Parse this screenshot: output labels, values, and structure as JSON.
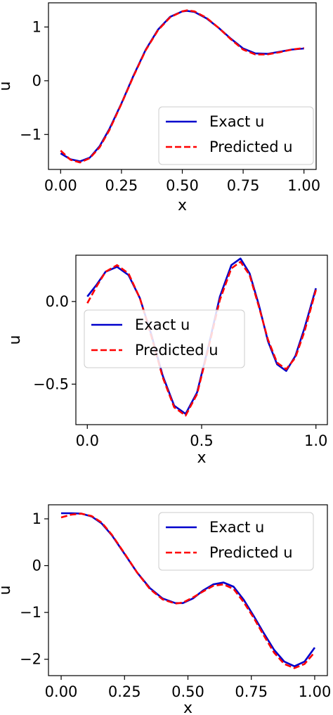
{
  "chart_data": [
    {
      "type": "line",
      "xlabel": "x",
      "ylabel": "u",
      "xlim": [
        -0.05,
        1.05
      ],
      "ylim": [
        -1.65,
        1.45
      ],
      "xticks": [
        0.0,
        0.25,
        0.5,
        0.75,
        1.0
      ],
      "xtick_labels": [
        "0.00",
        "0.25",
        "0.50",
        "0.75",
        "1.00"
      ],
      "yticks": [
        -1,
        0,
        1
      ],
      "ytick_labels": [
        "−1",
        "0",
        "1"
      ],
      "legend_position": "lower-right",
      "grid": false,
      "series": [
        {
          "name": "Exact u",
          "color": "#0000cc",
          "style": "solid",
          "x": [
            0.0,
            0.04,
            0.08,
            0.12,
            0.16,
            0.2,
            0.25,
            0.3,
            0.35,
            0.4,
            0.45,
            0.5,
            0.52,
            0.55,
            0.6,
            0.65,
            0.7,
            0.75,
            0.8,
            0.85,
            0.9,
            0.95,
            1.0
          ],
          "y": [
            -1.35,
            -1.46,
            -1.5,
            -1.43,
            -1.22,
            -0.9,
            -0.42,
            0.1,
            0.58,
            0.95,
            1.19,
            1.29,
            1.3,
            1.28,
            1.16,
            0.98,
            0.78,
            0.6,
            0.51,
            0.5,
            0.54,
            0.58,
            0.6
          ]
        },
        {
          "name": "Predicted u",
          "color": "#ff0000",
          "style": "dashed",
          "x": [
            0.0,
            0.04,
            0.08,
            0.12,
            0.16,
            0.2,
            0.25,
            0.3,
            0.35,
            0.4,
            0.45,
            0.5,
            0.52,
            0.55,
            0.6,
            0.65,
            0.7,
            0.75,
            0.8,
            0.85,
            0.9,
            0.95,
            1.0
          ],
          "y": [
            -1.3,
            -1.47,
            -1.52,
            -1.44,
            -1.24,
            -0.92,
            -0.43,
            0.09,
            0.57,
            0.94,
            1.18,
            1.29,
            1.31,
            1.29,
            1.17,
            0.98,
            0.77,
            0.58,
            0.49,
            0.49,
            0.53,
            0.58,
            0.61
          ]
        }
      ]
    },
    {
      "type": "line",
      "xlabel": "x",
      "ylabel": "u",
      "xlim": [
        -0.05,
        1.05
      ],
      "ylim": [
        -0.745,
        0.28
      ],
      "xticks": [
        0.0,
        0.5,
        1.0
      ],
      "xtick_labels": [
        "0.0",
        "0.5",
        "1.0"
      ],
      "yticks": [
        -0.5,
        0.0
      ],
      "ytick_labels": [
        "−0.5",
        "0.0"
      ],
      "legend_position": "center-left",
      "grid": false,
      "series": [
        {
          "name": "Exact u",
          "color": "#0000cc",
          "style": "solid",
          "x": [
            0.0,
            0.04,
            0.08,
            0.13,
            0.18,
            0.23,
            0.28,
            0.33,
            0.38,
            0.43,
            0.48,
            0.53,
            0.58,
            0.63,
            0.67,
            0.71,
            0.75,
            0.79,
            0.83,
            0.87,
            0.91,
            0.95,
            1.0
          ],
          "y": [
            0.03,
            0.1,
            0.18,
            0.21,
            0.16,
            0.02,
            -0.2,
            -0.45,
            -0.63,
            -0.68,
            -0.55,
            -0.27,
            0.03,
            0.22,
            0.26,
            0.17,
            -0.02,
            -0.24,
            -0.38,
            -0.42,
            -0.33,
            -0.16,
            0.08
          ]
        },
        {
          "name": "Predicted u",
          "color": "#ff0000",
          "style": "dashed",
          "x": [
            0.0,
            0.04,
            0.08,
            0.13,
            0.18,
            0.23,
            0.28,
            0.33,
            0.38,
            0.43,
            0.48,
            0.53,
            0.58,
            0.63,
            0.67,
            0.71,
            0.75,
            0.79,
            0.83,
            0.87,
            0.91,
            0.95,
            1.0
          ],
          "y": [
            -0.01,
            0.09,
            0.18,
            0.22,
            0.17,
            0.02,
            -0.21,
            -0.46,
            -0.64,
            -0.69,
            -0.56,
            -0.28,
            0.01,
            0.2,
            0.24,
            0.16,
            -0.03,
            -0.23,
            -0.37,
            -0.41,
            -0.34,
            -0.18,
            0.07
          ]
        }
      ]
    },
    {
      "type": "line",
      "xlabel": "x",
      "ylabel": "u",
      "xlim": [
        -0.05,
        1.05
      ],
      "ylim": [
        -2.35,
        1.3
      ],
      "xticks": [
        0.0,
        0.25,
        0.5,
        0.75,
        1.0
      ],
      "xtick_labels": [
        "0.00",
        "0.25",
        "0.50",
        "0.75",
        "1.00"
      ],
      "yticks": [
        -2,
        -1,
        0,
        1
      ],
      "ytick_labels": [
        "−2",
        "−1",
        "0",
        "1"
      ],
      "legend_position": "upper-right",
      "grid": false,
      "series": [
        {
          "name": "Exact u",
          "color": "#0000cc",
          "style": "solid",
          "x": [
            0.0,
            0.04,
            0.08,
            0.12,
            0.16,
            0.2,
            0.25,
            0.3,
            0.35,
            0.4,
            0.45,
            0.48,
            0.52,
            0.56,
            0.6,
            0.64,
            0.68,
            0.72,
            0.76,
            0.8,
            0.84,
            0.88,
            0.92,
            0.96,
            1.0
          ],
          "y": [
            1.12,
            1.12,
            1.11,
            1.05,
            0.9,
            0.65,
            0.25,
            -0.15,
            -0.48,
            -0.7,
            -0.8,
            -0.8,
            -0.7,
            -0.53,
            -0.4,
            -0.36,
            -0.45,
            -0.73,
            -1.08,
            -1.45,
            -1.8,
            -2.05,
            -2.15,
            -2.05,
            -1.75
          ]
        },
        {
          "name": "Predicted u",
          "color": "#ff0000",
          "style": "dashed",
          "x": [
            0.0,
            0.04,
            0.08,
            0.12,
            0.16,
            0.2,
            0.25,
            0.3,
            0.35,
            0.4,
            0.45,
            0.48,
            0.52,
            0.56,
            0.6,
            0.64,
            0.68,
            0.72,
            0.76,
            0.8,
            0.84,
            0.88,
            0.92,
            0.96,
            1.0
          ],
          "y": [
            1.03,
            1.09,
            1.11,
            1.06,
            0.92,
            0.66,
            0.26,
            -0.15,
            -0.5,
            -0.72,
            -0.81,
            -0.79,
            -0.68,
            -0.55,
            -0.43,
            -0.4,
            -0.5,
            -0.78,
            -1.12,
            -1.5,
            -1.86,
            -2.1,
            -2.19,
            -2.1,
            -1.85
          ]
        }
      ]
    }
  ]
}
